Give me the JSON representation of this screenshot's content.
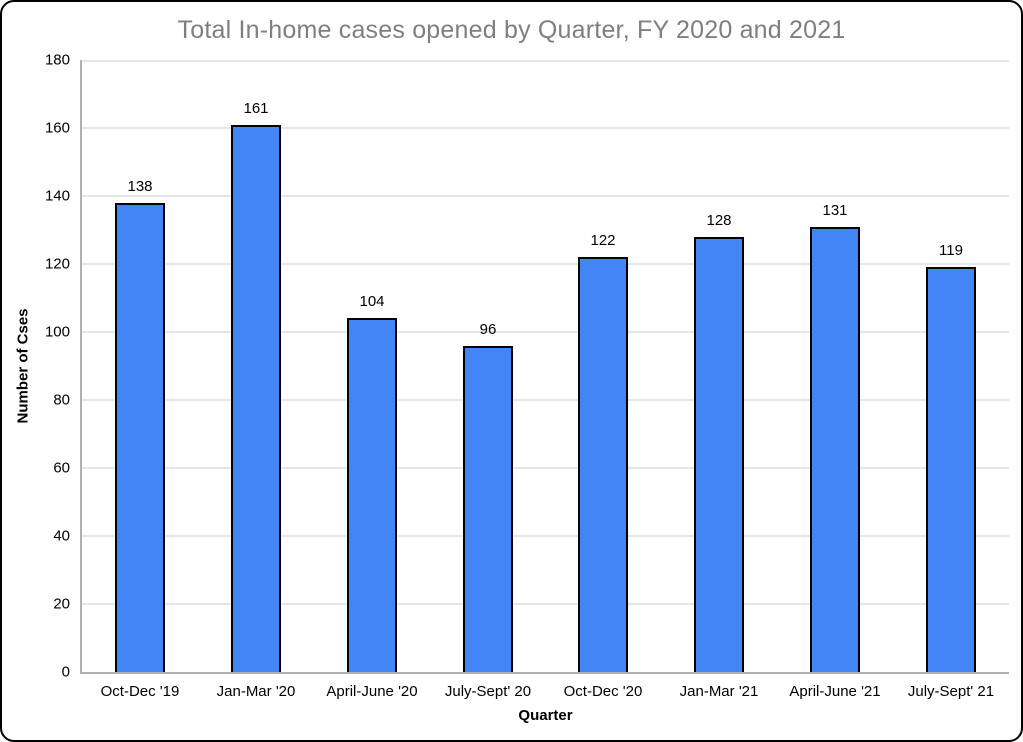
{
  "chart_data": {
    "type": "bar",
    "title": "Total In-home cases opened by Quarter, FY 2020 and 2021",
    "categories": [
      "Oct-Dec '19",
      "Jan-Mar '20",
      "April-June '20",
      "July-Sept' 20",
      "Oct-Dec '20",
      "Jan-Mar '21",
      "April-June '21",
      "July-Sept' 21"
    ],
    "values": [
      138,
      161,
      104,
      96,
      122,
      128,
      131,
      119
    ],
    "xlabel": "Quarter",
    "ylabel": "Number of Cses",
    "ylim": [
      0,
      180
    ],
    "ytick_step": 20,
    "yticks": [
      0,
      20,
      40,
      60,
      80,
      100,
      120,
      140,
      160,
      180
    ],
    "grid": "horizontal",
    "legend": "none",
    "data_labels": "above-bars",
    "colors": {
      "bar_fill": "#4285f4",
      "bar_border": "#000000",
      "title_text": "#7f7f7f",
      "gridline": "#e6e6e6",
      "axis_line": "#b0b0b0",
      "label_text": "#000000",
      "frame_border": "#000000",
      "background": "#ffffff"
    }
  }
}
